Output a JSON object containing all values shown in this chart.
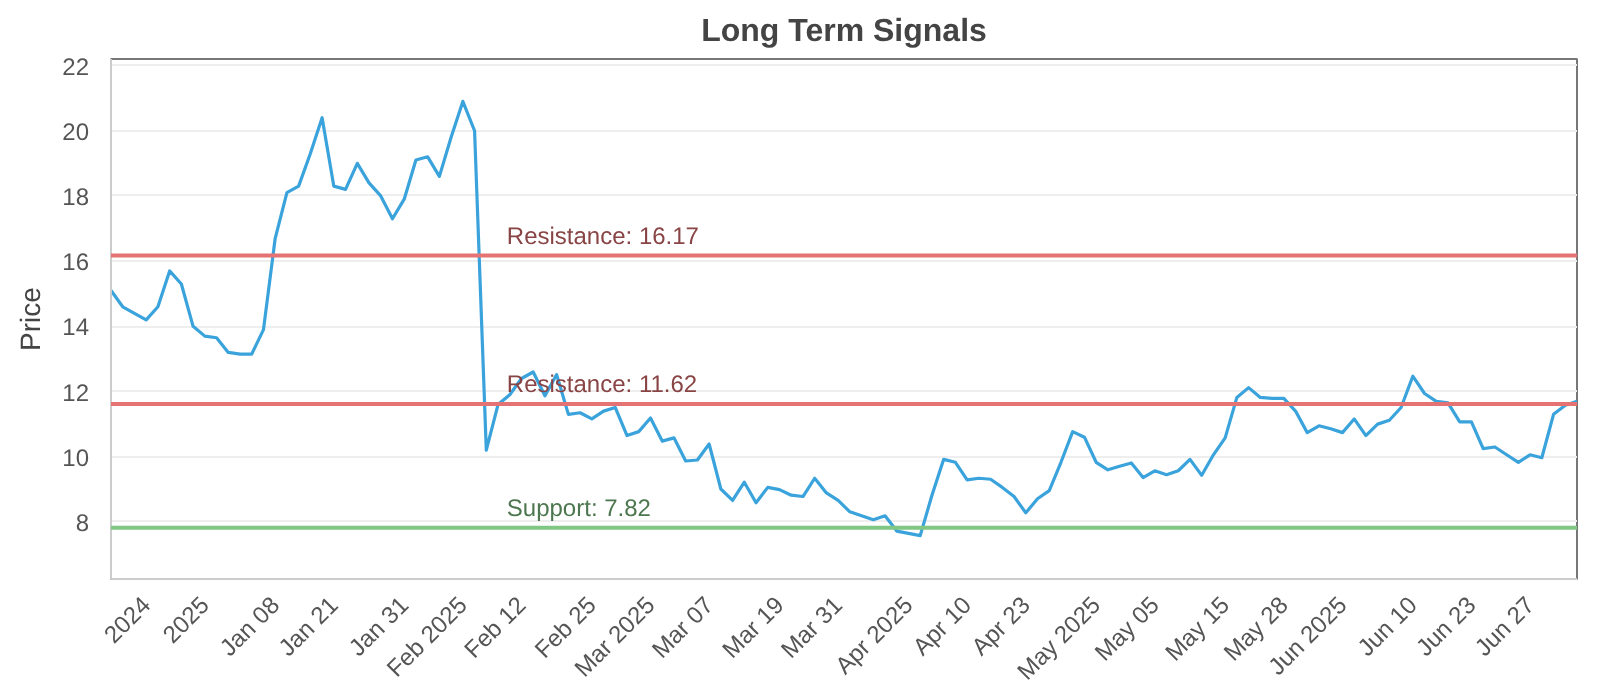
{
  "chart_data": {
    "type": "line",
    "title": "Long Term Signals",
    "ylabel": "Price",
    "categories": [
      null,
      null,
      null,
      "2024",
      null,
      null,
      null,
      null,
      "2025",
      null,
      null,
      null,
      null,
      null,
      "Jan 08",
      null,
      null,
      null,
      null,
      "Jan 21",
      null,
      null,
      null,
      null,
      null,
      "Jan 31",
      null,
      null,
      null,
      null,
      "Feb 2025",
      null,
      null,
      null,
      null,
      "Feb 12",
      null,
      null,
      null,
      null,
      null,
      "Feb 25",
      null,
      null,
      null,
      null,
      "Mar 2025",
      null,
      null,
      null,
      null,
      "Mar 07",
      null,
      null,
      null,
      null,
      null,
      "Mar 19",
      null,
      null,
      null,
      null,
      "Mar 31",
      null,
      null,
      null,
      null,
      null,
      "Apr 2025",
      null,
      null,
      null,
      null,
      "Apr 10",
      null,
      null,
      null,
      null,
      "Apr 23",
      null,
      null,
      null,
      null,
      null,
      "May 2025",
      null,
      null,
      null,
      null,
      "May 05",
      null,
      null,
      null,
      null,
      null,
      "May 15",
      null,
      null,
      null,
      null,
      "May 28",
      null,
      null,
      null,
      null,
      "Jun 2025",
      null,
      null,
      null,
      null,
      null,
      "Jun 10",
      null,
      null,
      null,
      null,
      "Jun 23",
      null,
      null,
      null,
      null,
      "Jun 27",
      null,
      null,
      null,
      null
    ],
    "series": [
      {
        "color": "#3ba3dc",
        "values": [
          15.1,
          14.6,
          14.4,
          14.2,
          14.6,
          15.7,
          15.3,
          14.0,
          13.7,
          13.65,
          13.2,
          13.15,
          13.15,
          13.9,
          16.7,
          18.1,
          18.3,
          19.3,
          20.4,
          18.3,
          18.2,
          19.0,
          18.4,
          18.0,
          17.3,
          17.9,
          19.1,
          19.2,
          18.6,
          19.8,
          20.9,
          20.0,
          10.2,
          11.6,
          11.9,
          12.4,
          12.6,
          11.87,
          12.52,
          11.3,
          11.35,
          11.16,
          11.4,
          11.51,
          10.65,
          10.77,
          11.19,
          10.48,
          10.58,
          9.87,
          9.9,
          10.39,
          9.01,
          8.66,
          9.22,
          8.59,
          9.06,
          8.99,
          8.82,
          8.78,
          9.34,
          8.89,
          8.66,
          8.31,
          8.19,
          8.07,
          8.19,
          7.72,
          7.65,
          7.58,
          8.82,
          9.92,
          9.83,
          9.29,
          9.34,
          9.31,
          9.06,
          8.78,
          8.28,
          8.71,
          8.96,
          9.83,
          10.77,
          10.6,
          9.83,
          9.6,
          9.71,
          9.81,
          9.36,
          9.57,
          9.45,
          9.57,
          9.92,
          9.43,
          10.06,
          10.58,
          11.82,
          12.12,
          11.82,
          11.79,
          11.79,
          11.4,
          10.74,
          10.95,
          10.86,
          10.74,
          11.16,
          10.65,
          11.0,
          11.12,
          11.51,
          12.47,
          11.94,
          11.7,
          11.65,
          11.07,
          11.07,
          10.25,
          10.3,
          10.06,
          9.83,
          10.06,
          9.97,
          11.3,
          11.58,
          11.7
        ]
      }
    ],
    "ylim": [
      6.25,
      22.2
    ],
    "yticks": [
      8,
      10,
      12,
      14,
      16,
      18,
      20,
      22
    ],
    "grid": "y",
    "ref_lines": [
      {
        "axis": "y",
        "value": 16.17,
        "label": "Resistance: 16.17",
        "color": "#e57373"
      },
      {
        "axis": "y",
        "value": 11.62,
        "label": "Resistance: 11.62",
        "color": "#e57373"
      },
      {
        "axis": "y",
        "value": 7.82,
        "label": "Support: 7.82",
        "color": "#81c784"
      }
    ]
  }
}
